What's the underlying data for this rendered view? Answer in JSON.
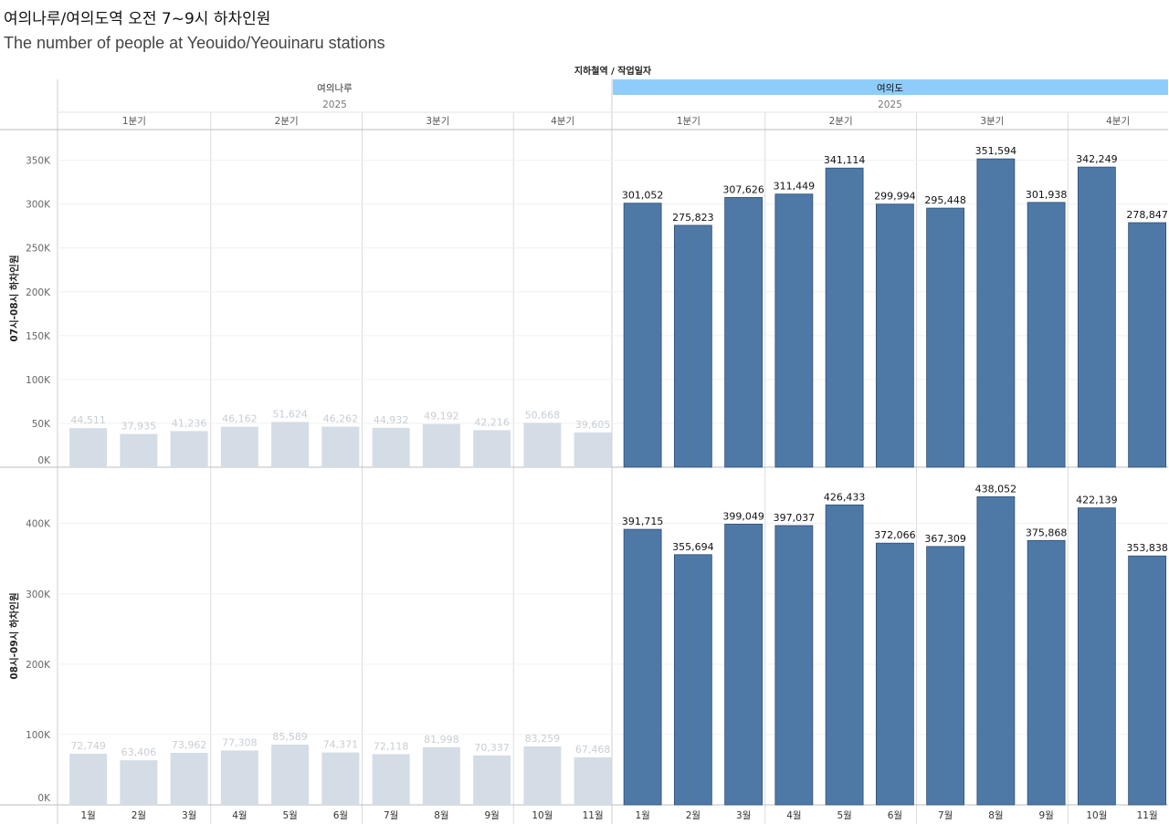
{
  "title": "여의나루/여의도역 오전 7~9시 하차인원",
  "subtitle": "The number of people at Yeouido/Yeouinaru stations",
  "colors": {
    "highlight_bar": "#4e79a7",
    "dim_bar": "#d4dde5",
    "dim_label": "#c8ced4",
    "highlight_header": "#8ecdfb"
  },
  "chart_data": {
    "type": "bar",
    "column_header_title": "지하철역 / 작업일자",
    "stations": [
      {
        "name": "여의나루",
        "year": "2025",
        "highlighted": false,
        "quarters": [
          {
            "label": "1분기",
            "months": 3
          },
          {
            "label": "2분기",
            "months": 3
          },
          {
            "label": "3분기",
            "months": 3
          },
          {
            "label": "4분기",
            "months": 2
          }
        ]
      },
      {
        "name": "여의도",
        "year": "2025",
        "highlighted": true,
        "quarters": [
          {
            "label": "1분기",
            "months": 3
          },
          {
            "label": "2분기",
            "months": 3
          },
          {
            "label": "3분기",
            "months": 3
          },
          {
            "label": "4분기",
            "months": 2
          }
        ]
      }
    ],
    "categories": [
      "1월",
      "2월",
      "3월",
      "4월",
      "5월",
      "6월",
      "7월",
      "8월",
      "9월",
      "10월",
      "11월"
    ],
    "panels": [
      {
        "ylabel": "07시-08시 하차인원",
        "ylim": [
          0,
          385000
        ],
        "ticks": [
          0,
          50000,
          100000,
          150000,
          200000,
          250000,
          300000,
          350000
        ],
        "tick_labels": [
          "0K",
          "50K",
          "100K",
          "150K",
          "200K",
          "250K",
          "300K",
          "350K"
        ],
        "series": [
          {
            "name": "여의나루",
            "values": [
              44511,
              37935,
              41236,
              46162,
              51624,
              46262,
              44932,
              49192,
              42216,
              50668,
              39605
            ],
            "labels": [
              "44,511",
              "37,935",
              "41,236",
              "46,162",
              "51,624",
              "46,262",
              "44,932",
              "49,192",
              "42,216",
              "50,668",
              "39,605"
            ]
          },
          {
            "name": "여의도",
            "values": [
              301052,
              275823,
              307626,
              311449,
              341114,
              299994,
              295448,
              351594,
              301938,
              342249,
              278847
            ],
            "labels": [
              "301,052",
              "275,823",
              "307,626",
              "311,449",
              "341,114",
              "299,994",
              "295,448",
              "351,594",
              "301,938",
              "342,249",
              "278,847"
            ]
          }
        ]
      },
      {
        "ylabel": "08시-09시 하차인원",
        "ylim": [
          0,
          480000
        ],
        "ticks": [
          0,
          100000,
          200000,
          300000,
          400000
        ],
        "tick_labels": [
          "0K",
          "100K",
          "200K",
          "300K",
          "400K"
        ],
        "series": [
          {
            "name": "여의나루",
            "values": [
              72749,
              63406,
              73962,
              77308,
              85589,
              74371,
              72118,
              81998,
              70337,
              83259,
              67468
            ],
            "labels": [
              "72,749",
              "63,406",
              "73,962",
              "77,308",
              "85,589",
              "74,371",
              "72,118",
              "81,998",
              "70,337",
              "83,259",
              "67,468"
            ]
          },
          {
            "name": "여의도",
            "values": [
              391715,
              355694,
              399049,
              397037,
              426433,
              372066,
              367309,
              438052,
              375868,
              422139,
              353838
            ],
            "labels": [
              "391,715",
              "355,694",
              "399,049",
              "397,037",
              "426,433",
              "372,066",
              "367,309",
              "438,052",
              "375,868",
              "422,139",
              "353,838"
            ]
          }
        ]
      }
    ]
  }
}
